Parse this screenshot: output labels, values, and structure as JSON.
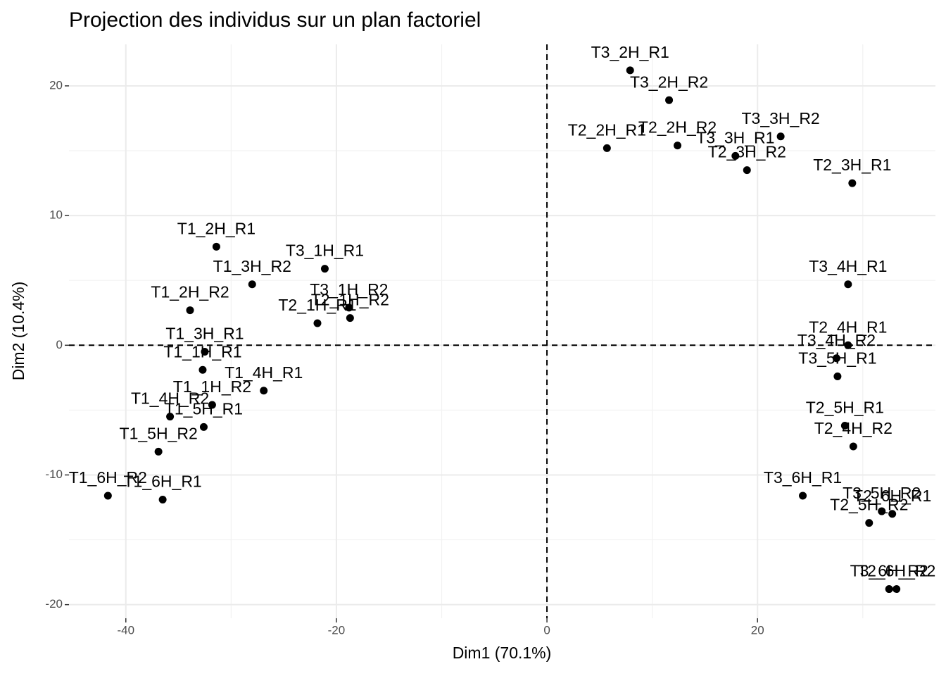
{
  "chart_data": {
    "type": "scatter",
    "title": "Projection des individus sur un plan factoriel",
    "xlabel": "Dim1 (70.1%)",
    "ylabel": "Dim2 (10.4%)",
    "xlim": [
      -45.4,
      36.9
    ],
    "ylim": [
      -21.05,
      23.2
    ],
    "xticks": [
      -40,
      -20,
      0,
      20
    ],
    "yticks": [
      -20,
      -10,
      0,
      10,
      20
    ],
    "grid": true,
    "reference_lines": {
      "x": 0,
      "y": 0
    },
    "color": "#000000",
    "labels": [
      "T3_2H_R1",
      "T3_2H_R2",
      "T2_2H_R1",
      "T2_2H_R2",
      "T3_3H_R2",
      "T3_3H_R1",
      "T2_3H_R2",
      "T2_3H_R1",
      "T1_2H_R1",
      "T3_1H_R1",
      "T1_3H_R2",
      "T1_2H_R2",
      "T3_1H_R2",
      "T2_1H_R2",
      "T2_1H_R1",
      "T3_4H_R1",
      "T2_4H_R1",
      "T3_4H_R2",
      "T3_5H_R1",
      "T1_3H_R1",
      "T1_1H_R1",
      "T1_4H_R1",
      "T1_1H_R2",
      "T1_4H_R2",
      "T1_5H_R1",
      "T1_5H_R2",
      "T1_6H_R2",
      "T1_6H_R1",
      "T2_5H_R1",
      "T2_4H_R2",
      "T3_6H_R1",
      "T3_5H_R2",
      "T2_6H_R1",
      "T2_5H_R2",
      "T3_6H_R2",
      "T2_6H_R2"
    ],
    "x": [
      7.9,
      11.6,
      5.7,
      12.4,
      22.2,
      17.9,
      19.0,
      29.0,
      -31.4,
      -21.1,
      -28.0,
      -33.9,
      -18.8,
      -18.7,
      -21.8,
      28.6,
      28.6,
      27.5,
      27.6,
      -32.5,
      -32.7,
      -26.9,
      -31.8,
      -35.8,
      -32.6,
      -36.9,
      -41.7,
      -36.5,
      28.3,
      29.1,
      24.3,
      31.8,
      32.8,
      30.6,
      32.5,
      33.2
    ],
    "y": [
      21.2,
      18.9,
      15.2,
      15.4,
      16.1,
      14.6,
      13.5,
      12.5,
      7.6,
      5.9,
      4.7,
      2.7,
      2.9,
      2.1,
      1.7,
      4.7,
      0.0,
      -1.0,
      -2.4,
      -0.5,
      -1.9,
      -3.5,
      -4.6,
      -5.5,
      -6.3,
      -8.2,
      -11.6,
      -11.9,
      -6.2,
      -7.8,
      -11.6,
      -12.8,
      -13.0,
      -13.7,
      -18.8,
      -18.8
    ]
  }
}
